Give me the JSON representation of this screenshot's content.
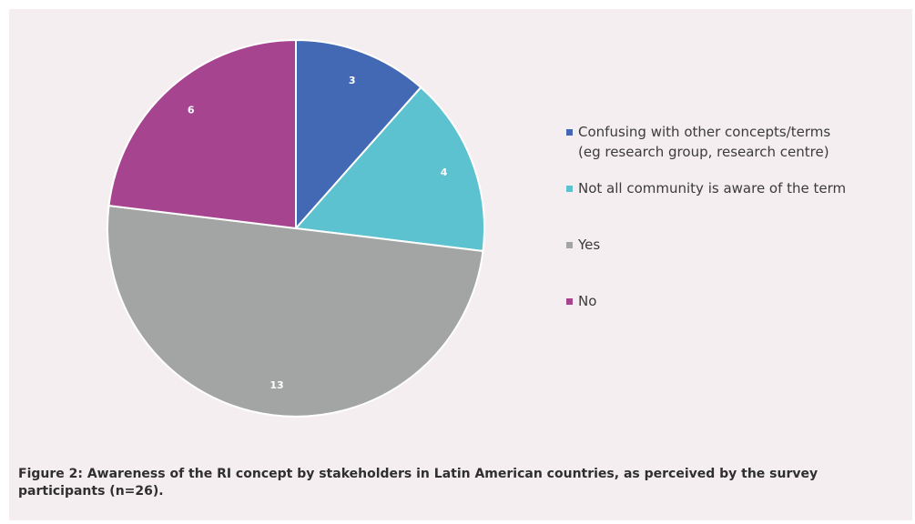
{
  "chart_data": {
    "type": "pie",
    "title": "",
    "categories": [
      "Confusing with other concepts/terms (eg research group, research centre)",
      "Not all community is aware of the term",
      "Yes",
      "No"
    ],
    "values": [
      3,
      4,
      13,
      6
    ],
    "data_labels": [
      "3",
      "4",
      "13",
      "6"
    ],
    "colors": [
      "#4369b5",
      "#5cc2cf",
      "#a3a5a4",
      "#a64490"
    ],
    "legend_placement": "right",
    "start_angle": "12 o'clock, clockwise"
  },
  "legend": {
    "items": [
      {
        "line1": "Confusing with other concepts/terms",
        "line2": "(eg research group, research centre)",
        "color": "#4369b5"
      },
      {
        "line1": "Not all community is aware of the term",
        "line2": "",
        "color": "#5cc2cf"
      },
      {
        "line1": "Yes",
        "line2": "",
        "color": "#a3a5a4"
      },
      {
        "line1": "No",
        "line2": "",
        "color": "#a64490"
      }
    ]
  },
  "caption": {
    "line1": "Figure 2: Awareness of the RI concept by stakeholders in Latin American countries, as perceived by the survey",
    "line2": "participants (n=26)."
  }
}
